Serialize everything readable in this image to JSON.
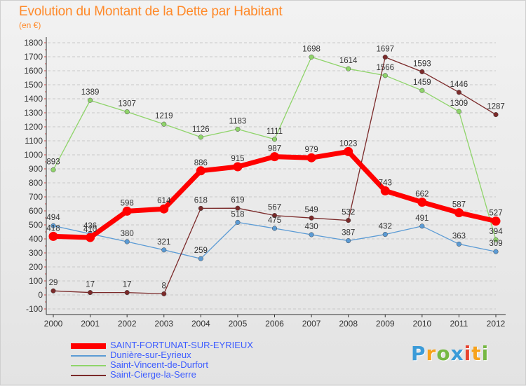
{
  "title": "Evolution du Montant de la Dette par Habitant",
  "unit": "(en €)",
  "brand": {
    "letters": [
      "P",
      "r",
      "o",
      "x",
      "i",
      "t",
      "i"
    ],
    "colors": [
      "#3b9bd8",
      "#f7a21b",
      "#76b843",
      "#3b9bd8",
      "#e8432e",
      "#f7a21b",
      "#76b843"
    ]
  },
  "chart_data": {
    "type": "line",
    "x": [
      2000,
      2001,
      2002,
      2003,
      2004,
      2005,
      2006,
      2007,
      2008,
      2009,
      2010,
      2011,
      2012
    ],
    "ylim": [
      -100,
      1800
    ],
    "ytick_step": 100,
    "grid": "horizontal dashed",
    "legend": "bottom-left",
    "series": [
      {
        "name": "SAINT-FORTUNAT-SUR-EYRIEUX",
        "color": "#ff0000",
        "values": [
          418,
          410,
          598,
          614,
          886,
          915,
          987,
          979,
          1023,
          743,
          662,
          587,
          527
        ]
      },
      {
        "name": "Dunière-sur-Eyrieux",
        "color": "#5b9bd5",
        "values": [
          494,
          436,
          380,
          321,
          259,
          518,
          475,
          430,
          387,
          432,
          491,
          363,
          309
        ]
      },
      {
        "name": "Saint-Vincent-de-Durfort",
        "color": "#8fd46a",
        "values": [
          893,
          1389,
          1307,
          1219,
          1126,
          1183,
          1111,
          1698,
          1614,
          1566,
          1459,
          1309,
          394
        ]
      },
      {
        "name": "Saint-Cierge-la-Serre",
        "color": "#7b2a2a",
        "values": [
          29,
          17,
          17,
          8,
          618,
          619,
          567,
          549,
          532,
          1697,
          1593,
          1446,
          1287
        ]
      }
    ]
  }
}
